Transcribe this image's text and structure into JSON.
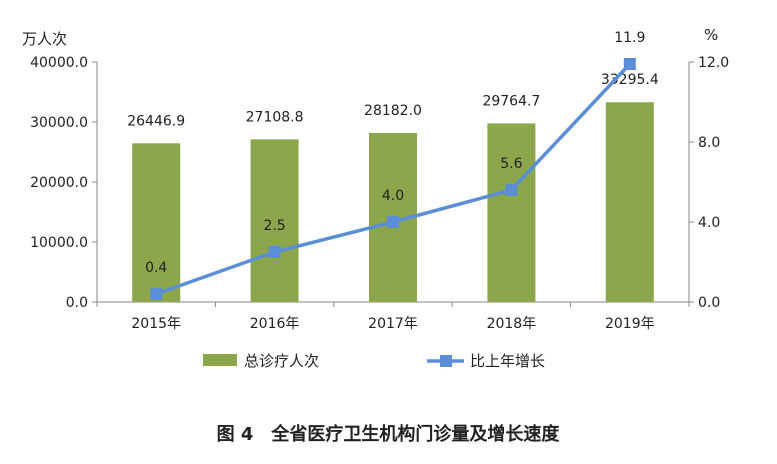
{
  "chart_data": {
    "type": "bar",
    "title": "图 4　全省医疗卫生机构门诊量及增长速度",
    "categories": [
      "2015年",
      "2016年",
      "2017年",
      "2018年",
      "2019年"
    ],
    "ylabel": "万人次",
    "y2label": "%",
    "ylim": [
      0,
      40000
    ],
    "y2lim": [
      0,
      12
    ],
    "yticks": [
      "0.0",
      "10000.0",
      "20000.0",
      "30000.0",
      "40000.0"
    ],
    "y2ticks": [
      "0.0",
      "4.0",
      "8.0",
      "12.0"
    ],
    "grid": false,
    "legend_position": "bottom",
    "series": [
      {
        "name": "总诊疗人次",
        "type": "bar",
        "axis": "left",
        "color": "#8BA64B",
        "values": [
          26446.9,
          27108.8,
          28182.0,
          29764.7,
          33295.4
        ],
        "labels": [
          "26446.9",
          "27108.8",
          "28182.0",
          "29764.7",
          "33295.4"
        ]
      },
      {
        "name": "比上年增长",
        "type": "line",
        "axis": "right",
        "color": "#5B8ED6",
        "values": [
          0.4,
          2.5,
          4.0,
          5.6,
          11.9
        ],
        "labels": [
          "0.4",
          "2.5",
          "4.0",
          "5.6",
          "11.9"
        ]
      }
    ]
  }
}
